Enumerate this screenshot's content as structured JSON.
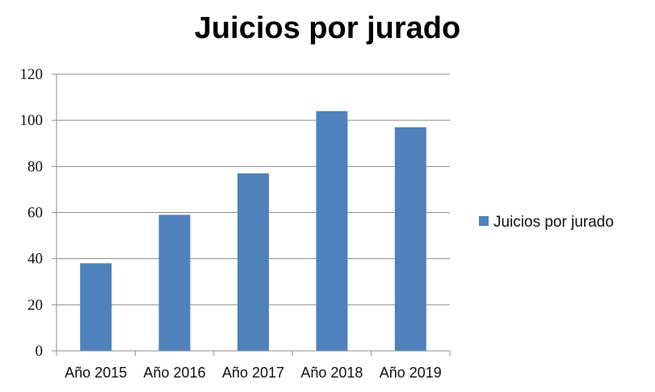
{
  "chart_data": {
    "type": "bar",
    "title": "Juicios por jurado",
    "categories": [
      "Año 2015",
      "Año 2016",
      "Año 2017",
      "Año 2018",
      "Año 2019"
    ],
    "series": [
      {
        "name": "Juicios por jurado",
        "values": [
          38,
          59,
          77,
          104,
          97
        ],
        "color": "#4F81BD"
      }
    ],
    "ylim": [
      0,
      120
    ],
    "yticks": [
      "0",
      "20",
      "40",
      "60",
      "80",
      "100",
      "120"
    ],
    "grid": true,
    "legend_position": "right"
  }
}
